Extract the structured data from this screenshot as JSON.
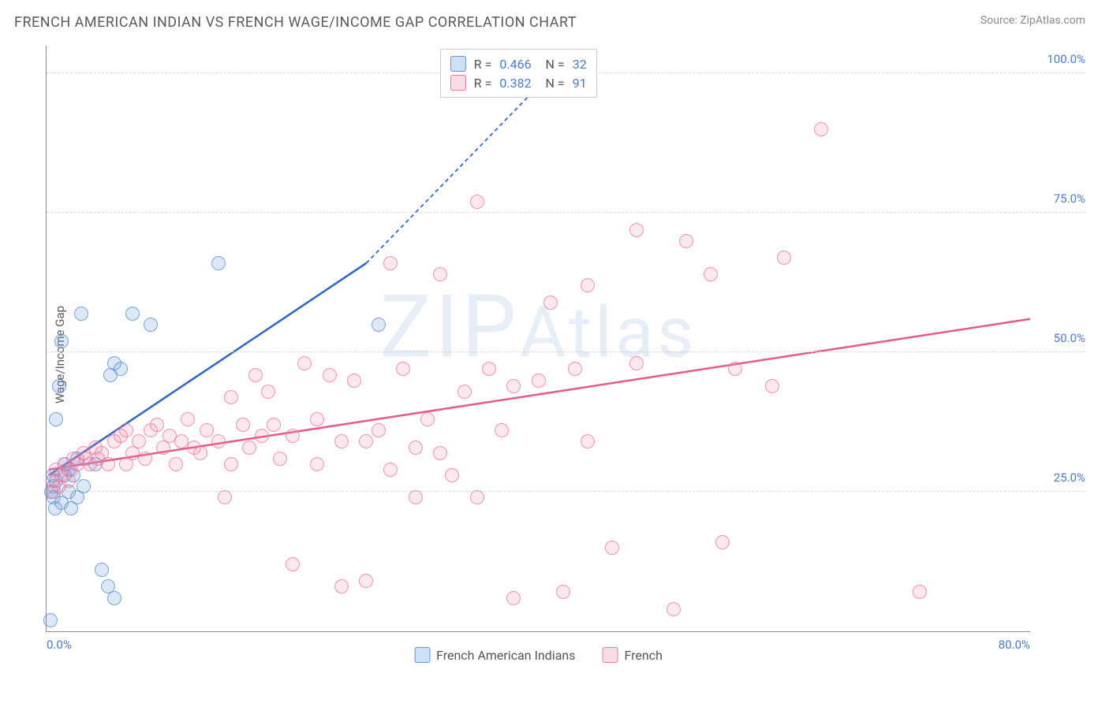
{
  "header": {
    "title": "FRENCH AMERICAN INDIAN VS FRENCH WAGE/INCOME GAP CORRELATION CHART",
    "source_label": "Source:",
    "source_value": "ZipAtlas.com"
  },
  "watermark": "ZIPAtlas",
  "chart": {
    "type": "scatter",
    "ylabel": "Wage/Income Gap",
    "xlim": [
      0,
      80
    ],
    "ylim": [
      0,
      105
    ],
    "xticks": [
      {
        "v": 0,
        "label": "0.0%"
      },
      {
        "v": 80,
        "label": "80.0%"
      }
    ],
    "yticks": [
      {
        "v": 25,
        "label": "25.0%"
      },
      {
        "v": 50,
        "label": "50.0%"
      },
      {
        "v": 75,
        "label": "75.0%"
      },
      {
        "v": 100,
        "label": "100.0%"
      }
    ],
    "grid_color": "#d8d8d8",
    "axis_color": "#888888",
    "background_color": "#ffffff",
    "series": [
      {
        "name": "French American Indians",
        "color_fill": "rgba(115,165,225,0.25)",
        "color_stroke": "rgba(90,140,210,0.75)",
        "marker_size": 18,
        "R": "0.466",
        "N": "32",
        "trend": {
          "solid": {
            "x1": 0.2,
            "y1": 28,
            "x2": 26,
            "y2": 66
          },
          "dashed": {
            "x1": 26,
            "y1": 66,
            "x2": 41,
            "y2": 100
          },
          "color": "#2e64c8",
          "width": 2.5
        },
        "points": [
          {
            "x": 0.3,
            "y": 2
          },
          {
            "x": 0.4,
            "y": 25
          },
          {
            "x": 0.5,
            "y": 28
          },
          {
            "x": 0.6,
            "y": 26
          },
          {
            "x": 0.6,
            "y": 24
          },
          {
            "x": 0.7,
            "y": 22
          },
          {
            "x": 0.8,
            "y": 27
          },
          {
            "x": 0.8,
            "y": 38
          },
          {
            "x": 1.0,
            "y": 44
          },
          {
            "x": 1.2,
            "y": 52
          },
          {
            "x": 1.2,
            "y": 23
          },
          {
            "x": 1.5,
            "y": 30
          },
          {
            "x": 1.5,
            "y": 28
          },
          {
            "x": 1.8,
            "y": 25
          },
          {
            "x": 1.8,
            "y": 29
          },
          {
            "x": 2.0,
            "y": 22
          },
          {
            "x": 2.2,
            "y": 28
          },
          {
            "x": 2.5,
            "y": 31
          },
          {
            "x": 2.5,
            "y": 24
          },
          {
            "x": 2.8,
            "y": 57
          },
          {
            "x": 3.0,
            "y": 26
          },
          {
            "x": 4.0,
            "y": 30
          },
          {
            "x": 4.5,
            "y": 11
          },
          {
            "x": 5.0,
            "y": 8
          },
          {
            "x": 5.2,
            "y": 46
          },
          {
            "x": 5.5,
            "y": 48
          },
          {
            "x": 5.5,
            "y": 6
          },
          {
            "x": 6.0,
            "y": 47
          },
          {
            "x": 7.0,
            "y": 57
          },
          {
            "x": 8.5,
            "y": 55
          },
          {
            "x": 14,
            "y": 66
          },
          {
            "x": 27,
            "y": 55
          }
        ]
      },
      {
        "name": "French",
        "color_fill": "rgba(240,140,170,0.2)",
        "color_stroke": "rgba(235,110,150,0.7)",
        "marker_size": 18,
        "R": "0.382",
        "N": "91",
        "trend": {
          "solid": {
            "x1": 0.2,
            "y1": 29,
            "x2": 80,
            "y2": 56
          },
          "color": "#e65a8a",
          "width": 2.5
        },
        "points": [
          {
            "x": 0.5,
            "y": 27
          },
          {
            "x": 0.6,
            "y": 25
          },
          {
            "x": 0.8,
            "y": 29
          },
          {
            "x": 1.0,
            "y": 26
          },
          {
            "x": 1.2,
            "y": 28
          },
          {
            "x": 1.5,
            "y": 30
          },
          {
            "x": 1.8,
            "y": 27
          },
          {
            "x": 2.0,
            "y": 29
          },
          {
            "x": 2.2,
            "y": 31
          },
          {
            "x": 2.5,
            "y": 30
          },
          {
            "x": 3.0,
            "y": 32
          },
          {
            "x": 3.2,
            "y": 31
          },
          {
            "x": 3.5,
            "y": 30
          },
          {
            "x": 4.0,
            "y": 33
          },
          {
            "x": 4.2,
            "y": 31
          },
          {
            "x": 4.5,
            "y": 32
          },
          {
            "x": 5.0,
            "y": 30
          },
          {
            "x": 5.5,
            "y": 34
          },
          {
            "x": 6.0,
            "y": 35
          },
          {
            "x": 6.5,
            "y": 30
          },
          {
            "x": 7.0,
            "y": 32
          },
          {
            "x": 7.5,
            "y": 34
          },
          {
            "x": 8.0,
            "y": 31
          },
          {
            "x": 8.5,
            "y": 36
          },
          {
            "x": 9.0,
            "y": 37
          },
          {
            "x": 9.5,
            "y": 33
          },
          {
            "x": 10,
            "y": 35
          },
          {
            "x": 10.5,
            "y": 30
          },
          {
            "x": 11,
            "y": 34
          },
          {
            "x": 11.5,
            "y": 38
          },
          {
            "x": 12,
            "y": 33
          },
          {
            "x": 13,
            "y": 36
          },
          {
            "x": 14,
            "y": 34
          },
          {
            "x": 14.5,
            "y": 24
          },
          {
            "x": 15,
            "y": 42
          },
          {
            "x": 15,
            "y": 30
          },
          {
            "x": 16,
            "y": 37
          },
          {
            "x": 16.5,
            "y": 33
          },
          {
            "x": 17,
            "y": 46
          },
          {
            "x": 17.5,
            "y": 35
          },
          {
            "x": 18,
            "y": 43
          },
          {
            "x": 18.5,
            "y": 37
          },
          {
            "x": 19,
            "y": 31
          },
          {
            "x": 20,
            "y": 35
          },
          {
            "x": 20,
            "y": 12
          },
          {
            "x": 21,
            "y": 48
          },
          {
            "x": 22,
            "y": 38
          },
          {
            "x": 22,
            "y": 30
          },
          {
            "x": 23,
            "y": 46
          },
          {
            "x": 24,
            "y": 8
          },
          {
            "x": 24,
            "y": 34
          },
          {
            "x": 25,
            "y": 45
          },
          {
            "x": 26,
            "y": 34
          },
          {
            "x": 26,
            "y": 9
          },
          {
            "x": 27,
            "y": 36
          },
          {
            "x": 28,
            "y": 29
          },
          {
            "x": 28,
            "y": 66
          },
          {
            "x": 29,
            "y": 47
          },
          {
            "x": 30,
            "y": 33
          },
          {
            "x": 30,
            "y": 24
          },
          {
            "x": 31,
            "y": 38
          },
          {
            "x": 32,
            "y": 32
          },
          {
            "x": 32,
            "y": 64
          },
          {
            "x": 33,
            "y": 28
          },
          {
            "x": 34,
            "y": 43
          },
          {
            "x": 35,
            "y": 77
          },
          {
            "x": 35,
            "y": 24
          },
          {
            "x": 36,
            "y": 47
          },
          {
            "x": 37,
            "y": 36
          },
          {
            "x": 38,
            "y": 44
          },
          {
            "x": 38,
            "y": 6
          },
          {
            "x": 40,
            "y": 45
          },
          {
            "x": 41,
            "y": 59
          },
          {
            "x": 42,
            "y": 7
          },
          {
            "x": 43,
            "y": 47
          },
          {
            "x": 44,
            "y": 34
          },
          {
            "x": 44,
            "y": 62
          },
          {
            "x": 46,
            "y": 15
          },
          {
            "x": 48,
            "y": 72
          },
          {
            "x": 48,
            "y": 48
          },
          {
            "x": 51,
            "y": 4
          },
          {
            "x": 52,
            "y": 70
          },
          {
            "x": 54,
            "y": 64
          },
          {
            "x": 55,
            "y": 16
          },
          {
            "x": 56,
            "y": 47
          },
          {
            "x": 59,
            "y": 44
          },
          {
            "x": 60,
            "y": 67
          },
          {
            "x": 63,
            "y": 90
          },
          {
            "x": 71,
            "y": 7
          },
          {
            "x": 12.5,
            "y": 32
          },
          {
            "x": 6.5,
            "y": 36
          }
        ]
      }
    ],
    "legend_bottom": [
      {
        "swatch": "blue",
        "label": "French American Indians"
      },
      {
        "swatch": "pink",
        "label": "French"
      }
    ]
  }
}
